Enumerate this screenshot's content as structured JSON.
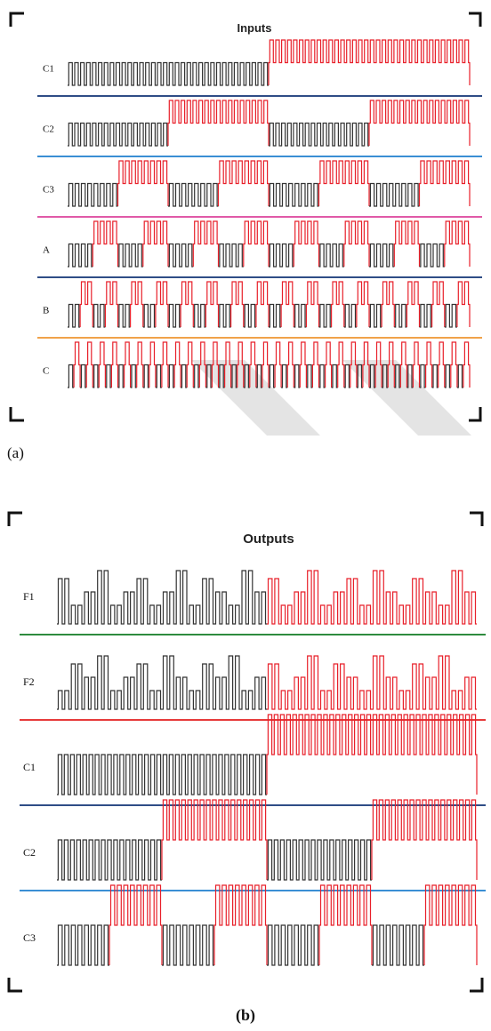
{
  "colors": {
    "low_wave": "#333333",
    "high_wave": "#e8202a",
    "divider_navy": "#2f4d86",
    "divider_blue": "#3a8fd4",
    "divider_pink": "#e05aa8",
    "divider_orange": "#f0a24a",
    "divider_green": "#2e8b3e",
    "divider_red": "#e63a3a"
  },
  "panel_a": {
    "title": "Inputs",
    "caption": "(a)",
    "rows": [
      {
        "label": "C1",
        "pattern": "c1",
        "divider": "divider_navy"
      },
      {
        "label": "C2",
        "pattern": "c2",
        "divider": "divider_blue"
      },
      {
        "label": "C3",
        "pattern": "c3",
        "divider": "divider_pink"
      },
      {
        "label": "A",
        "pattern": "a",
        "divider": "divider_navy"
      },
      {
        "label": "B",
        "pattern": "b",
        "divider": "divider_orange"
      },
      {
        "label": "C",
        "pattern": "c",
        "divider": ""
      }
    ]
  },
  "panel_b": {
    "title": "Outputs",
    "caption": "(b)",
    "rows": [
      {
        "label": "F1",
        "pattern": "f1",
        "divider": "divider_green"
      },
      {
        "label": "F2",
        "pattern": "f2",
        "divider": "divider_red"
      },
      {
        "label": "C1",
        "pattern": "c1",
        "divider": "divider_navy"
      },
      {
        "label": "C2",
        "pattern": "c2",
        "divider": "divider_blue"
      },
      {
        "label": "C3",
        "pattern": "c3",
        "divider": ""
      }
    ]
  }
}
